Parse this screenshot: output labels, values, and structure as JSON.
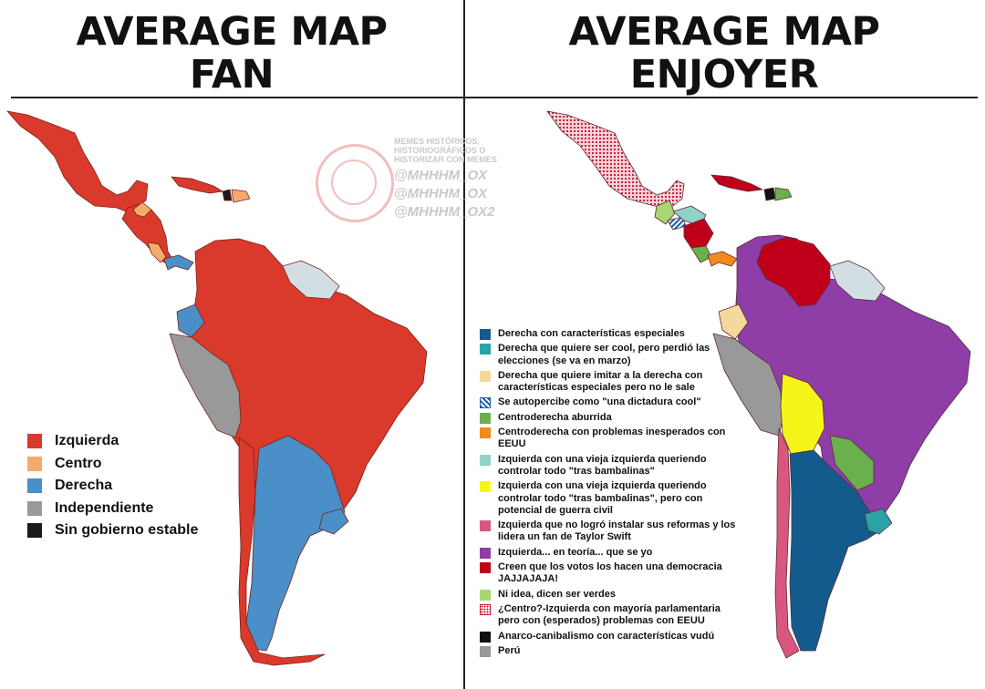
{
  "left_panel": {
    "title_line1": "AVERAGE MAP",
    "title_line2": "FAN",
    "legend": [
      {
        "label": "Izquierda",
        "color": "#d93a2b"
      },
      {
        "label": "Centro",
        "color": "#f6ab6c"
      },
      {
        "label": "Derecha",
        "color": "#4a8fc7"
      },
      {
        "label": "Independiente",
        "color": "#999999"
      },
      {
        "label": "Sin gobierno estable",
        "color": "#1a1a1a"
      }
    ]
  },
  "right_panel": {
    "title_line1": "AVERAGE MAP",
    "title_line2": "ENJOYER",
    "legend": [
      {
        "label": "Derecha con características especiales",
        "color": "#135b8c",
        "pattern": "solid"
      },
      {
        "label": "Derecha que quiere ser cool, pero perdió las elecciones (se va en marzo)",
        "color": "#2aa3a6",
        "pattern": "solid"
      },
      {
        "label": "Derecha que quiere imitar a la derecha con características especiales pero no le sale",
        "color": "#f5d99a",
        "pattern": "solid"
      },
      {
        "label": "Se autopercibe como \"una dictadura cool\"",
        "color": "#1f5fa8",
        "pattern": "striped"
      },
      {
        "label": "Centroderecha aburrida",
        "color": "#6ab04c",
        "pattern": "solid"
      },
      {
        "label": "Centroderecha con problemas inesperados con EEUU",
        "color": "#f28a1e",
        "pattern": "solid"
      },
      {
        "label": "Izquierda con una vieja izquierda queriendo controlar todo \"tras bambalinas\"",
        "color": "#8fd3c7",
        "pattern": "solid"
      },
      {
        "label": "Izquierda con una vieja izquierda queriendo controlar todo \"tras bambalinas\", pero con potencial de guerra civil",
        "color": "#f5f51a",
        "pattern": "solid"
      },
      {
        "label": "Izquierda que no logró instalar sus reformas y los lidera un fan de Taylor Swift",
        "color": "#d9577e",
        "pattern": "solid"
      },
      {
        "label": "Izquierda... en teoría... que se yo",
        "color": "#8e3ea6",
        "pattern": "solid"
      },
      {
        "label": "Creen que los votos los hacen una democracia JAJJAJAJA!",
        "color": "#c0001a",
        "pattern": "solid"
      },
      {
        "label": "Ni idea, dicen ser verdes",
        "color": "#a8d672",
        "pattern": "solid"
      },
      {
        "label": "¿Centro?-Izquierda con mayoría parlamentaria pero con (esperados) problemas con EEUU",
        "color": "#c8102e",
        "pattern": "checked"
      },
      {
        "label": "Anarco-canibalismo con características vudú",
        "color": "#111111",
        "pattern": "solid"
      },
      {
        "label": "Perú",
        "color": "#999999",
        "pattern": "solid"
      }
    ]
  },
  "watermark": {
    "text_lines": [
      "MEMES HISTÓRICOS,",
      "HISTORIOGRÁFICOS O",
      "HISTORIZAR CON MEMES"
    ],
    "handles": [
      "@MHHHM_OX",
      "@MHHHM_OX",
      "@MHHHM_OX2"
    ]
  }
}
